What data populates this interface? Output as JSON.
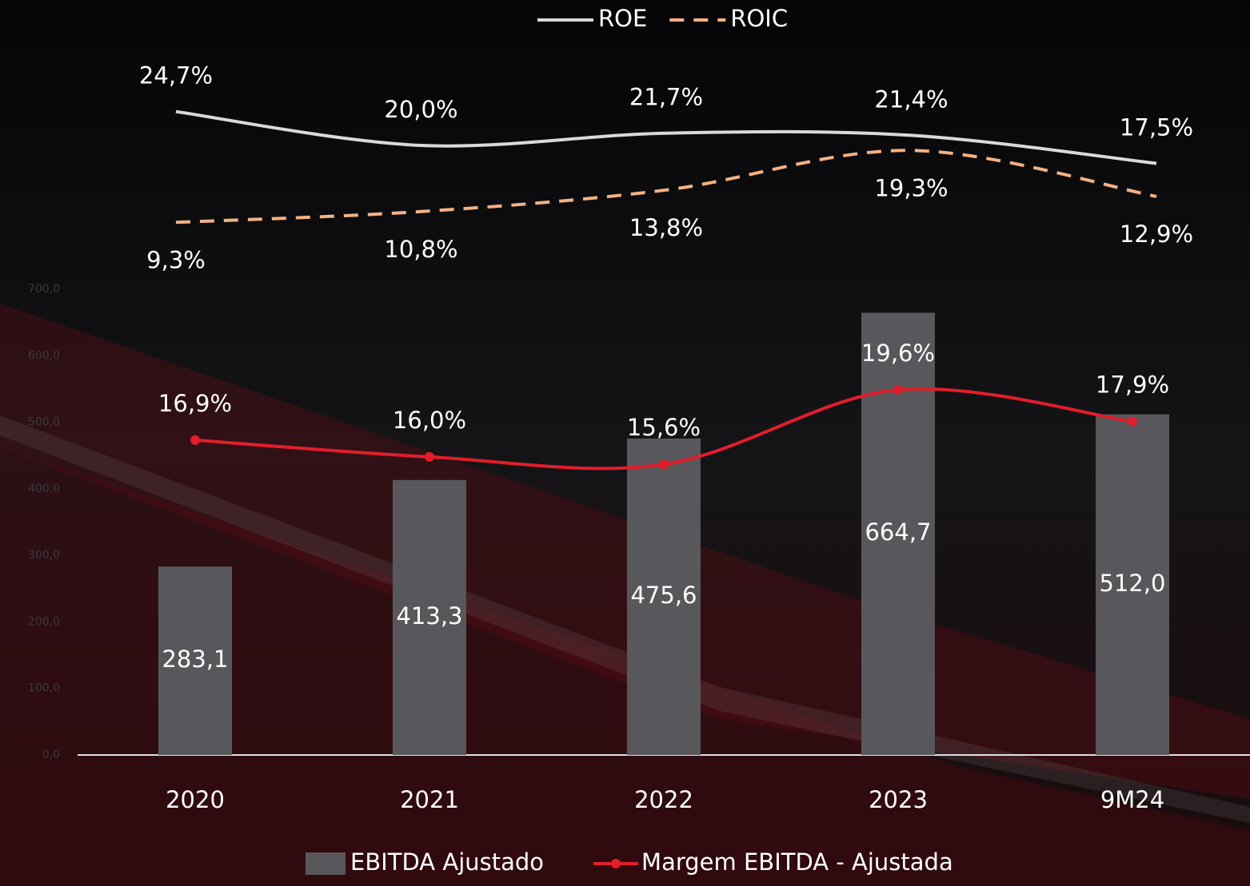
{
  "chart_data": [
    {
      "type": "line",
      "categories": [
        "2020",
        "2021",
        "2022",
        "2023",
        "9M24"
      ],
      "series": [
        {
          "name": "ROE",
          "color": "#d9d9d9",
          "dash": false,
          "values": [
            24.7,
            20.0,
            21.7,
            21.4,
            17.5
          ],
          "value_labels": [
            "24,7%",
            "20,0%",
            "21,7%",
            "21,4%",
            "17,5%"
          ]
        },
        {
          "name": "ROIC",
          "color": "#f4b183",
          "dash": true,
          "values": [
            9.3,
            10.8,
            13.8,
            19.3,
            12.9
          ],
          "value_labels": [
            "9,3%",
            "10,8%",
            "13,8%",
            "19,3%",
            "12,9%"
          ]
        }
      ],
      "ylim": [
        0,
        30
      ],
      "legend": "top"
    },
    {
      "type": "bar",
      "categories": [
        "2020",
        "2021",
        "2022",
        "2023",
        "9M24"
      ],
      "series": [
        {
          "name": "EBITDA Ajustado",
          "type": "bar",
          "color": "#58585c",
          "values": [
            283.1,
            413.3,
            475.6,
            664.7,
            512.0
          ],
          "value_labels": [
            "283,1",
            "413,3",
            "475,6",
            "664,7",
            "512,0"
          ]
        },
        {
          "name": "Margem EBITDA - Ajustada",
          "type": "line",
          "axis": "y2",
          "color": "#e31d2b",
          "values": [
            16.9,
            16.0,
            15.6,
            19.6,
            17.9
          ],
          "value_labels": [
            "16,9%",
            "16,0%",
            "15,6%",
            "19,6%",
            "17,9%"
          ]
        }
      ],
      "ylim": [
        0,
        700
      ],
      "yticks": [
        {
          "value": 0,
          "label": "0,0"
        },
        {
          "value": 100,
          "label": "100,0"
        },
        {
          "value": 200,
          "label": "200,0"
        },
        {
          "value": 300,
          "label": "300,0"
        },
        {
          "value": 400,
          "label": "400,0"
        },
        {
          "value": 500,
          "label": "500,0"
        },
        {
          "value": 600,
          "label": "600,0"
        },
        {
          "value": 700,
          "label": "700,0"
        }
      ],
      "y2lim": [
        0,
        25
      ],
      "legend": "bottom"
    }
  ]
}
